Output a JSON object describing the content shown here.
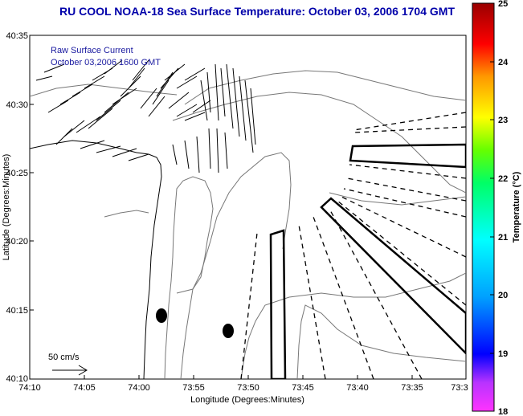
{
  "title": "RU COOL  NOAA-18  Sea Surface Temperature:  October 03, 2006 1704 GMT",
  "legend": {
    "line1": "Raw Surface Current",
    "line2": "October 03,2006 1600 GMT"
  },
  "scale_label": "50 cm/s",
  "x_axis": {
    "label": "Longitude (Degrees:Minutes)",
    "ticks": [
      "74:10",
      "74:05",
      "74:00",
      "73:55",
      "73:50",
      "73:45",
      "73:40",
      "73:35",
      "73:3"
    ]
  },
  "y_axis": {
    "label": "Latitude (Degrees:Minutes)",
    "ticks": [
      "40:35",
      "40:30",
      "40:25",
      "40:20",
      "40:15",
      "40:10"
    ]
  },
  "colorbar": {
    "label": "Temperature (°C)",
    "ticks": [
      "25",
      "24",
      "23",
      "22",
      "21",
      "20",
      "19",
      "18"
    ],
    "min": 18,
    "max": 25
  }
}
